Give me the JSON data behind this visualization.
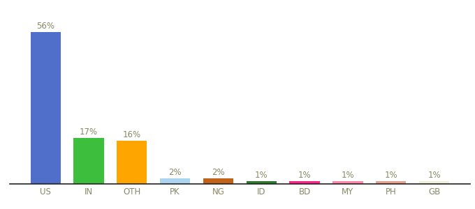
{
  "categories": [
    "US",
    "IN",
    "OTH",
    "PK",
    "NG",
    "ID",
    "BD",
    "MY",
    "PH",
    "GB"
  ],
  "values": [
    56,
    17,
    16,
    2,
    2,
    1,
    1,
    1,
    1,
    1
  ],
  "bar_colors": [
    "#4f6fca",
    "#3dbf3d",
    "#ffa500",
    "#aad4f0",
    "#c0621a",
    "#2a7a2a",
    "#ff2288",
    "#ff88aa",
    "#e8a090",
    "#f0f0d8"
  ],
  "labels": [
    "56%",
    "17%",
    "16%",
    "2%",
    "2%",
    "1%",
    "1%",
    "1%",
    "1%",
    "1%"
  ],
  "ylim": [
    0,
    64
  ],
  "background_color": "#ffffff",
  "label_fontsize": 8.5,
  "tick_fontsize": 8.5,
  "label_color": "#888866",
  "tick_color": "#888866",
  "bottom_spine_color": "#222222"
}
